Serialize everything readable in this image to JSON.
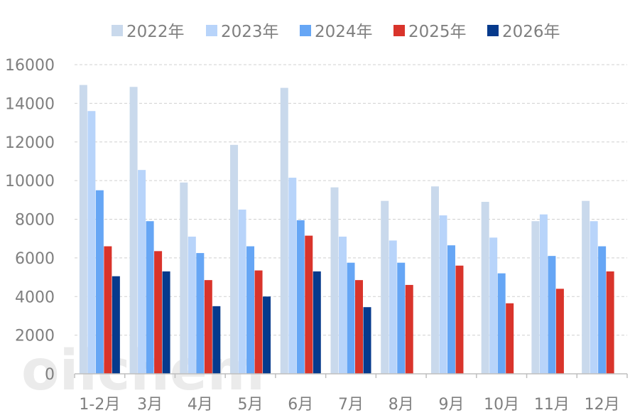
{
  "watermark": "oilchem",
  "chart_data": {
    "type": "bar",
    "categories": [
      "1-2月",
      "3月",
      "4月",
      "5月",
      "6月",
      "7月",
      "8月",
      "9月",
      "10月",
      "11月",
      "12月"
    ],
    "series": [
      {
        "name": "2022年",
        "color": "#c9d9ec",
        "values": [
          14950,
          14850,
          9900,
          11850,
          14800,
          9650,
          8950,
          9700,
          8900,
          7900,
          8950
        ]
      },
      {
        "name": "2023年",
        "color": "#b8d4fa",
        "values": [
          13600,
          10550,
          7100,
          8500,
          10150,
          7100,
          6900,
          8200,
          7050,
          8250,
          7900
        ]
      },
      {
        "name": "2024年",
        "color": "#66a6f5",
        "values": [
          9500,
          7900,
          6250,
          6600,
          7950,
          5750,
          5750,
          6650,
          5200,
          6100,
          6600
        ]
      },
      {
        "name": "2025年",
        "color": "#d9342b",
        "values": [
          6600,
          6350,
          4850,
          5350,
          7150,
          4850,
          4600,
          5600,
          3650,
          4400,
          5300
        ]
      },
      {
        "name": "2026年",
        "color": "#063a8c",
        "values": [
          5050,
          5300,
          3500,
          4000,
          5300,
          3450,
          null,
          null,
          null,
          null,
          null
        ]
      }
    ],
    "ylim": [
      0,
      16000
    ],
    "yticks": [
      0,
      2000,
      4000,
      6000,
      8000,
      10000,
      12000,
      14000,
      16000
    ],
    "grid": true,
    "legend_position": "top"
  }
}
